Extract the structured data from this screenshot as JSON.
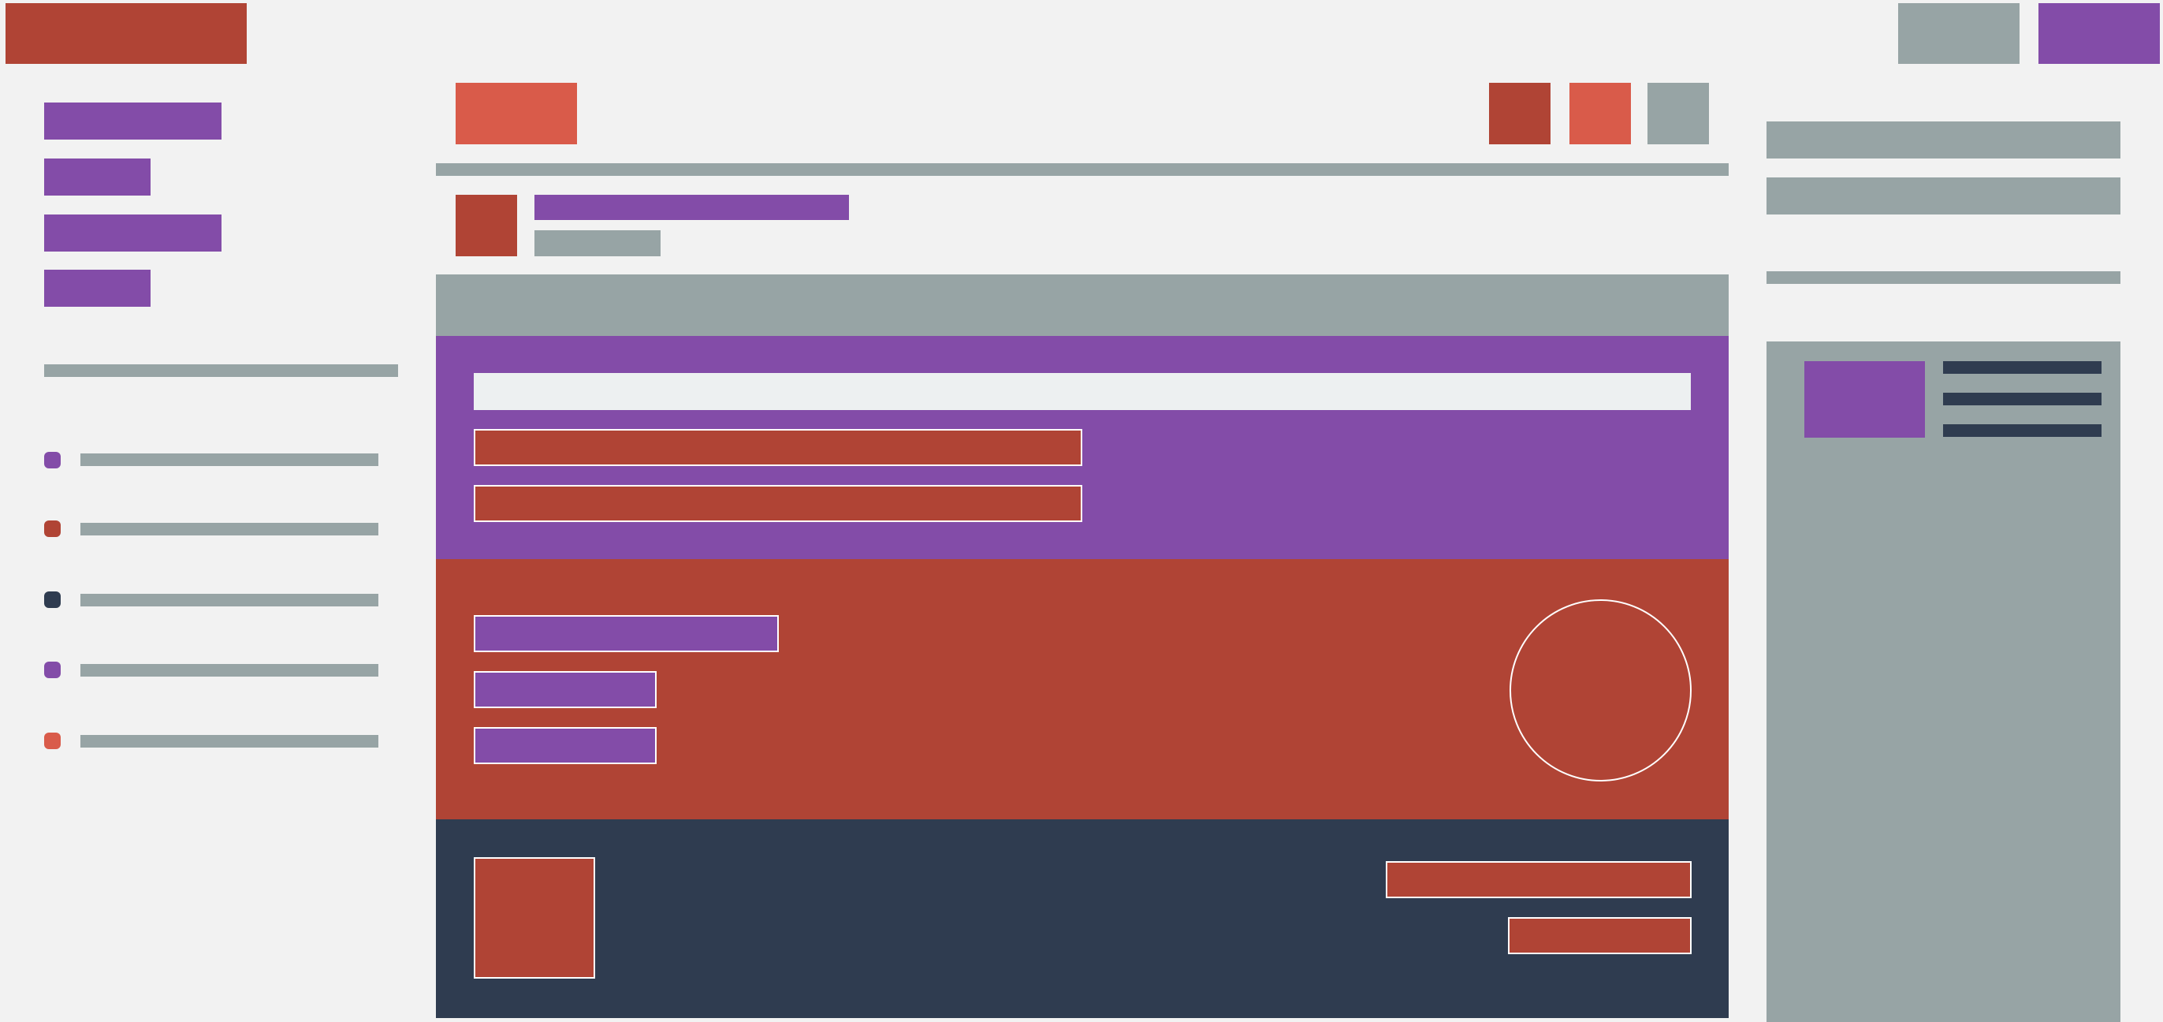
{
  "colors": {
    "background": "#f2f2f2",
    "brand": "#b04435",
    "accent": "#834ca8",
    "muted": "#97a4a5",
    "highlight": "#d95b4a",
    "dark": "#2f3c50",
    "input_fill": "#edf0f1",
    "outline": "#ffffff"
  },
  "sidebar": {
    "status_dots": [
      {
        "color": "#834ca8"
      },
      {
        "color": "#b04435"
      },
      {
        "color": "#2f3c50"
      },
      {
        "color": "#834ca8"
      },
      {
        "color": "#d95b4a"
      }
    ]
  },
  "details_panel": {
    "line_color": "#2f3c50"
  }
}
